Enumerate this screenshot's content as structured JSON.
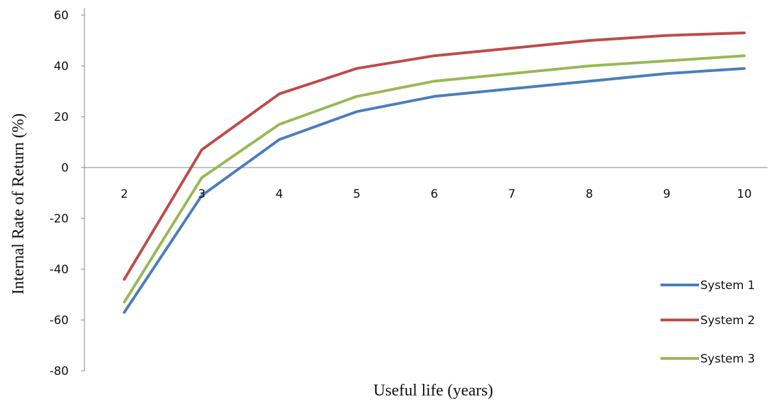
{
  "chart_data": {
    "type": "line",
    "x": [
      2,
      3,
      4,
      5,
      6,
      7,
      8,
      9,
      10
    ],
    "x_tick_labels": [
      "2",
      "3",
      "4",
      "5",
      "6",
      "7",
      "8",
      "9",
      "10"
    ],
    "series": [
      {
        "name": "System 1",
        "color": "#4a7ebb",
        "values": [
          -57,
          -11,
          11,
          22,
          28,
          31,
          34,
          37,
          39
        ]
      },
      {
        "name": "System 2",
        "color": "#be4b48",
        "values": [
          -44,
          7,
          29,
          39,
          44,
          47,
          50,
          52,
          53
        ]
      },
      {
        "name": "System 3",
        "color": "#98b954",
        "values": [
          -53,
          -4,
          17,
          28,
          34,
          37,
          40,
          42,
          44
        ]
      }
    ],
    "y_ticks": [
      60,
      40,
      20,
      0,
      -20,
      -40,
      -60,
      -80
    ],
    "y_tick_labels": [
      "60",
      "40",
      "20",
      "0",
      "-20",
      "-40",
      "-60",
      "-80"
    ],
    "ylim": [
      -80,
      60
    ],
    "xlabel": "Useful life  (years)",
    "ylabel": "Internal  Rate of Return  (%)",
    "legend_position": "bottom-right",
    "grid": false
  }
}
